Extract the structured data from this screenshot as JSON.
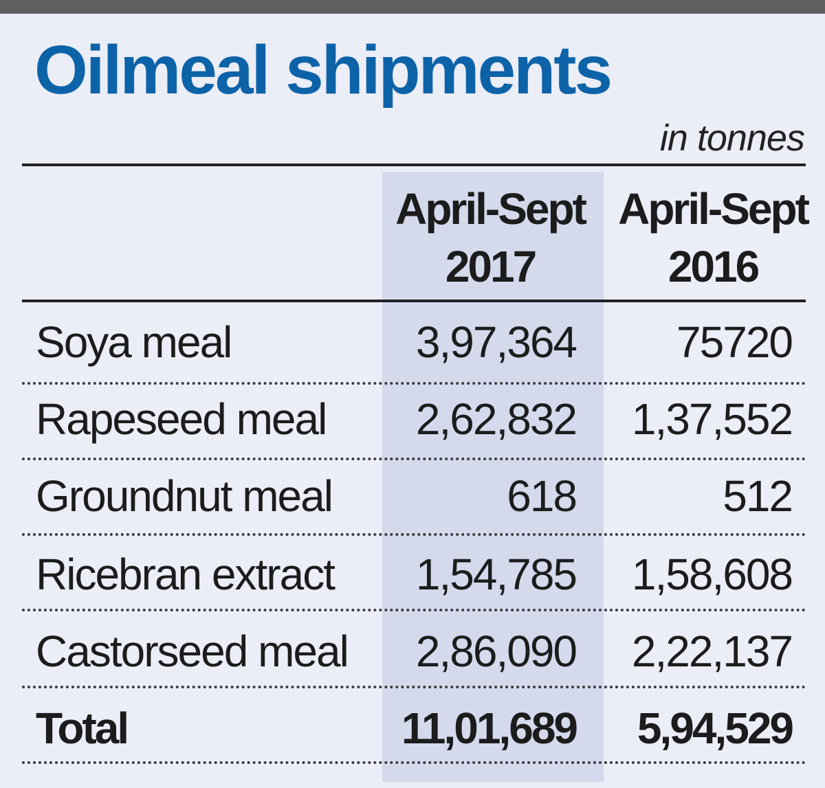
{
  "chart_data": {
    "type": "table",
    "title": "Oilmeal shipments",
    "units": "in tonnes",
    "columns": [
      {
        "line1": "April-Sept",
        "line2": "2017"
      },
      {
        "line1": "April-Sept",
        "line2": "2016"
      }
    ],
    "rows": [
      {
        "label": "Soya meal",
        "values": [
          "3,97,364",
          "75720"
        ]
      },
      {
        "label": "Rapeseed meal",
        "values": [
          "2,62,832",
          "1,37,552"
        ]
      },
      {
        "label": "Groundnut meal",
        "values": [
          "618",
          "512"
        ]
      },
      {
        "label": "Ricebran extract",
        "values": [
          "1,54,785",
          "1,58,608"
        ]
      },
      {
        "label": "Castorseed meal",
        "values": [
          "2,86,090",
          "2,22,137"
        ]
      }
    ],
    "total": {
      "label": "Total",
      "values": [
        "11,01,689",
        "5,94,529"
      ]
    }
  },
  "colors": {
    "title": "#0d63a8",
    "background": "#ebedf7",
    "highlight_column": "#d4d9ec",
    "top_rule": "#5f5f5f",
    "text": "#1c1c1c"
  }
}
